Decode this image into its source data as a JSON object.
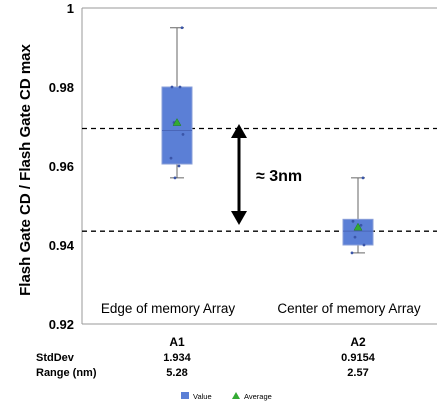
{
  "chart_data": {
    "type": "box",
    "ylabel": "Flash Gate CD / Flash Gate CD max",
    "xlabel": "",
    "ylim": [
      0.92,
      1.0
    ],
    "yticks": [
      "0.92",
      "0.94",
      "0.96",
      "0.98",
      "1"
    ],
    "grid": false,
    "categories": [
      "A1",
      "A2"
    ],
    "boxes": [
      {
        "category": "A1",
        "whisker_low": 0.957,
        "q1": 0.9605,
        "median": 0.969,
        "q3": 0.98,
        "whisker_high": 0.995,
        "mean": 0.971,
        "points": [
          0.995,
          0.98,
          0.98,
          0.971,
          0.968,
          0.962,
          0.96,
          0.957
        ],
        "stats": {
          "stddev": "1.934",
          "range": "5.28"
        }
      },
      {
        "category": "A2",
        "whisker_low": 0.938,
        "q1": 0.94,
        "median": 0.9435,
        "q3": 0.9465,
        "whisker_high": 0.957,
        "mean": 0.9445,
        "points": [
          0.957,
          0.946,
          0.945,
          0.942,
          0.94,
          0.938
        ],
        "stats": {
          "stddev": "0.9154",
          "range": "2.57"
        }
      }
    ],
    "reference_lines": [
      0.9695,
      0.9435
    ],
    "annotations": {
      "delta": "≈ 3nm",
      "a1_region": "Edge of memory Array",
      "a2_region": "Center of memory Array"
    },
    "stats_labels": {
      "stddev": "StdDev",
      "range": "Range (nm)"
    },
    "legend": {
      "placement": "bottom-center",
      "items": [
        "Value",
        "Average"
      ]
    },
    "colors": {
      "box": "#5b7fd6",
      "box_edge": "#8a9fd8",
      "mean": "#33aa33",
      "point": "#3a55a8",
      "axis": "#999999"
    }
  }
}
